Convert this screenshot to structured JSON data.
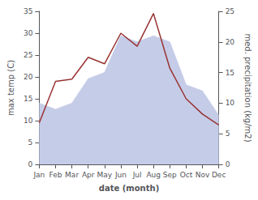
{
  "chart_data": {
    "type": "line",
    "xlabel": "date (month)",
    "ylabel": "max temp (C)",
    "y2label": "med. precipitation (kg/m2)",
    "categories": [
      "Jan",
      "Feb",
      "Mar",
      "Apr",
      "May",
      "Jun",
      "Jul",
      "Aug",
      "Sep",
      "Oct",
      "Nov",
      "Dec"
    ],
    "series": [
      {
        "type": "area",
        "axis": "y2",
        "color": "#c5cce8",
        "values": [
          10.0,
          9.0,
          10.0,
          14.0,
          15.0,
          21.0,
          20.0,
          21.0,
          20.0,
          13.0,
          12.0,
          8.0
        ]
      },
      {
        "type": "line",
        "axis": "y",
        "color": "#993333",
        "values": [
          9.5,
          19.0,
          19.5,
          24.5,
          23.0,
          30.0,
          27.0,
          34.5,
          22.0,
          15.0,
          11.5,
          9.0
        ]
      }
    ],
    "ylim": [
      0,
      35
    ],
    "yticks": [
      0,
      5,
      10,
      15,
      20,
      25,
      30,
      35
    ],
    "y2lim": [
      0,
      25
    ],
    "y2ticks": [
      0,
      5,
      10,
      15,
      20,
      25
    ],
    "grid": false
  }
}
